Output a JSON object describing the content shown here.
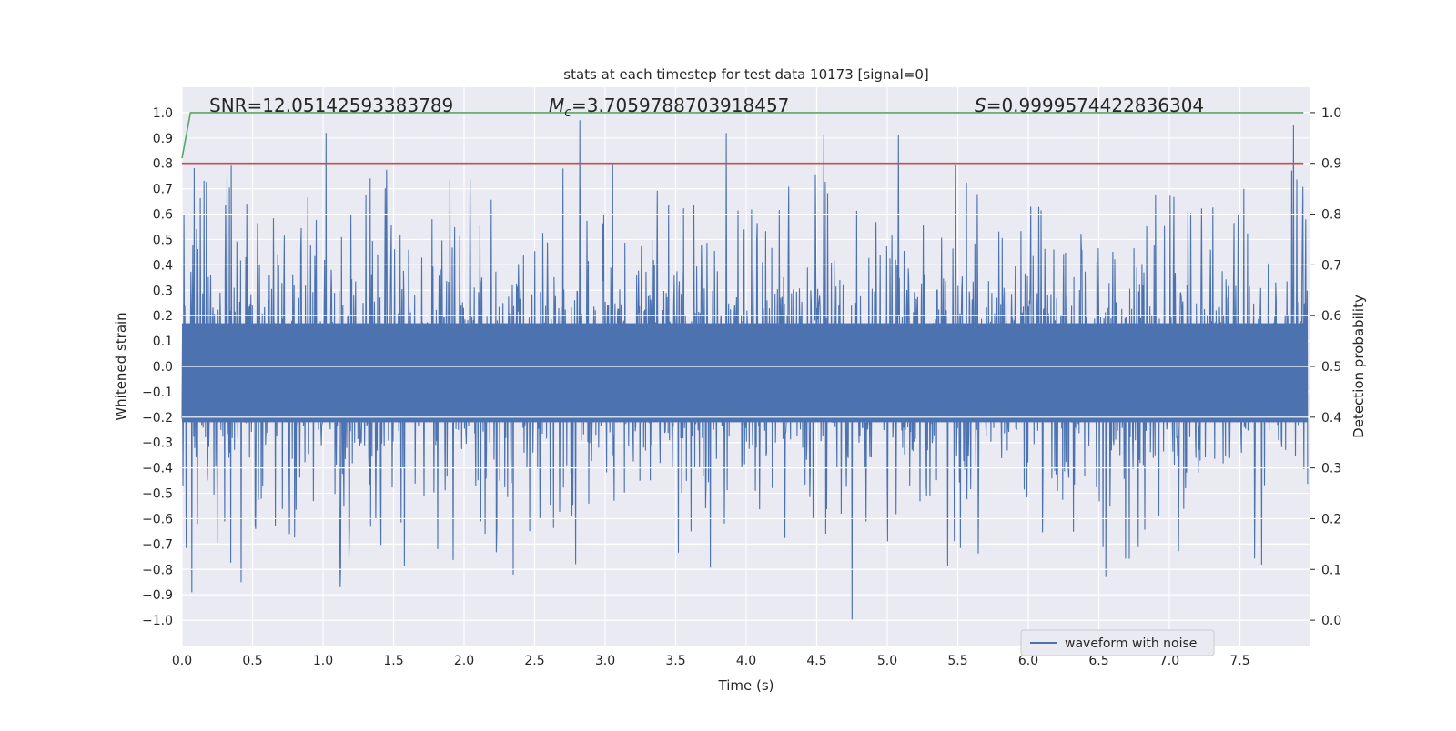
{
  "chart_data": {
    "type": "line",
    "title": "stats at each timestep for test data 10173 [signal=0]",
    "xlabel": "Time (s)",
    "ylabel_left": "Whitened strain",
    "ylabel_right": "Detection probability",
    "xlim": [
      0.0,
      8.0
    ],
    "ylim_left": [
      -1.1,
      1.1
    ],
    "ylim_right": [
      -0.05,
      1.05
    ],
    "x_ticks": [
      "0.0",
      "0.5",
      "1.0",
      "1.5",
      "2.0",
      "2.5",
      "3.0",
      "3.5",
      "4.0",
      "4.5",
      "5.0",
      "5.5",
      "6.0",
      "6.5",
      "7.0",
      "7.5"
    ],
    "y_left_ticks": [
      "1.0",
      "0.9",
      "0.8",
      "0.7",
      "0.6",
      "0.5",
      "0.4",
      "0.3",
      "0.2",
      "0.1",
      "0.0",
      "-0.1",
      "-0.2",
      "-0.3",
      "-0.4",
      "-0.5",
      "-0.6",
      "-0.7",
      "-0.8",
      "-0.9",
      "-1.0"
    ],
    "y_right_ticks": [
      "1.0",
      "0.9",
      "0.8",
      "0.7",
      "0.6",
      "0.5",
      "0.4",
      "0.3",
      "0.2",
      "0.1",
      "0.0"
    ],
    "annotations": {
      "snr": "SNR=12.05142593383789",
      "mc_symbol": "M",
      "mc_sub": "c",
      "mc_value": "=3.7059788703918457",
      "s_symbol": "S",
      "s_value": "=0.9999574422836304"
    },
    "grid": true,
    "legend_position": "lower-right",
    "series": [
      {
        "name": "waveform with noise",
        "axis": "left",
        "color": "#4c72b0",
        "style": "dense noisy waveform between about -1.0 and 0.97",
        "approx_range": [
          -1.0,
          0.97
        ],
        "peaks": [
          {
            "x": 1.02,
            "y": 0.92
          },
          {
            "x": 2.82,
            "y": 0.97
          },
          {
            "x": 3.86,
            "y": 0.92
          },
          {
            "x": 4.55,
            "y": 0.91
          },
          {
            "x": 5.08,
            "y": 0.91
          },
          {
            "x": 7.88,
            "y": 0.95
          }
        ],
        "troughs": [
          {
            "x": 0.07,
            "y": -0.89
          },
          {
            "x": 0.42,
            "y": -0.85
          },
          {
            "x": 1.12,
            "y": -0.87
          },
          {
            "x": 2.35,
            "y": -0.82
          },
          {
            "x": 4.75,
            "y": -1.0
          },
          {
            "x": 6.55,
            "y": -0.83
          }
        ]
      },
      {
        "name": "",
        "axis": "right",
        "color": "#55a868",
        "x": [
          0.0,
          0.06,
          7.95
        ],
        "y": [
          0.91,
          1.0,
          1.0
        ]
      },
      {
        "name": "",
        "axis": "right",
        "color": "#c44e52",
        "x": [
          0.0,
          7.95
        ],
        "y": [
          0.9,
          0.9
        ]
      }
    ]
  }
}
